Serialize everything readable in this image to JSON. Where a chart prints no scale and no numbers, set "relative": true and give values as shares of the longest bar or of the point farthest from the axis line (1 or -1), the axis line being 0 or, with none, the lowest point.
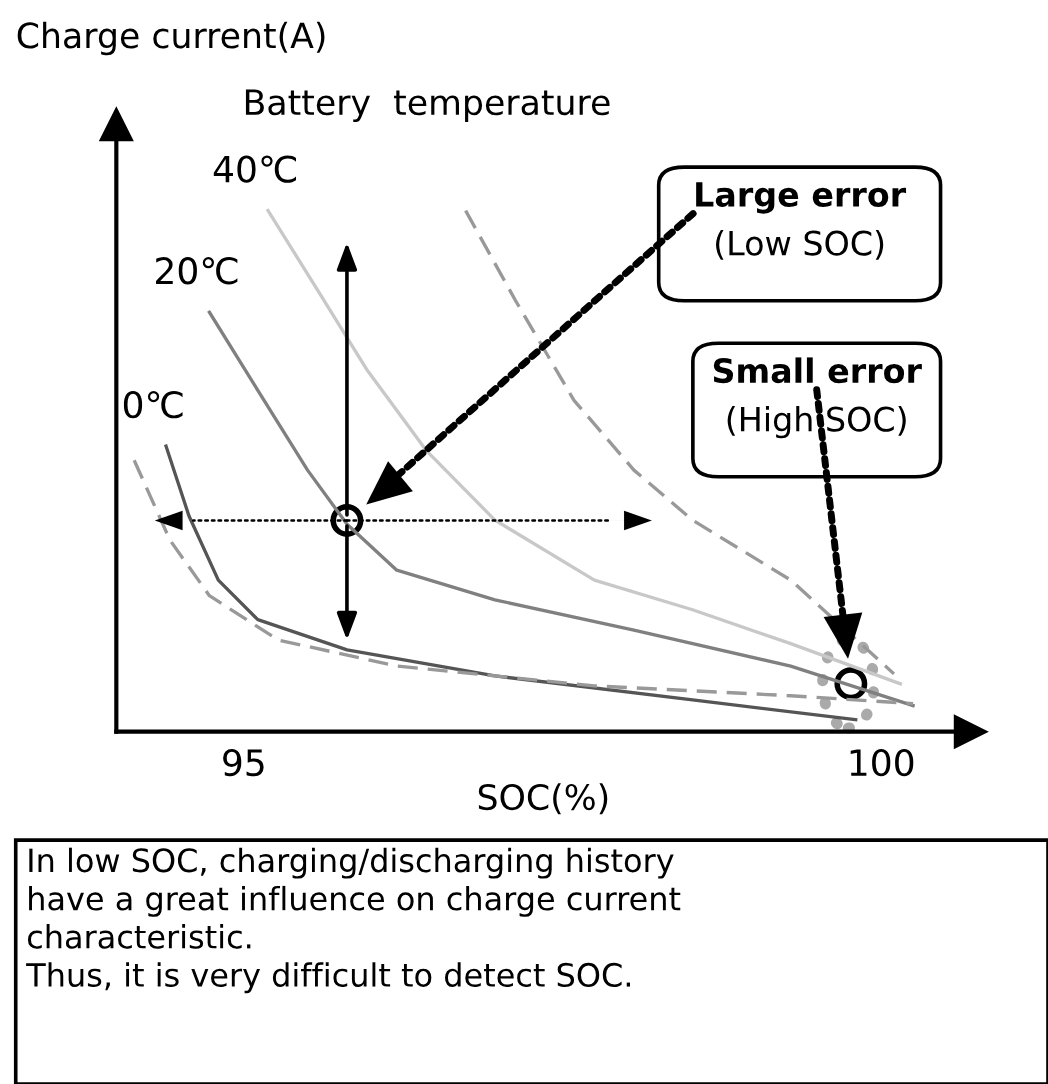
{
  "chart_data": {
    "type": "line",
    "relative": true,
    "ylabel": "Charge current(A)",
    "xlabel": "SOC(%)",
    "legend_title": "Battery  temperature",
    "xlim": [
      94.0,
      100.7
    ],
    "xticks": [
      95,
      100
    ],
    "grid": false,
    "legend": false,
    "marker": "none",
    "series": [
      {
        "name": "40℃",
        "color": "#c8c8c8",
        "line_style": "solid",
        "x": [
          95.19,
          95.58,
          95.97,
          96.43,
          96.97,
          97.75,
          98.52,
          99.29,
          100.15
        ],
        "values": [
          1.0,
          0.847,
          0.693,
          0.54,
          0.406,
          0.291,
          0.234,
          0.169,
          0.092
        ]
      },
      {
        "name": "20℃",
        "color": "#808080",
        "line_style": "solid",
        "x": [
          94.73,
          95.11,
          95.5,
          95.81,
          96.2,
          96.97,
          98.06,
          99.29,
          100.25
        ],
        "values": [
          0.805,
          0.655,
          0.502,
          0.398,
          0.31,
          0.253,
          0.195,
          0.126,
          0.05
        ]
      },
      {
        "name": "0℃",
        "color": "#555555",
        "line_style": "solid",
        "x": [
          94.39,
          94.57,
          94.8,
          95.11,
          95.81,
          96.97,
          98.52,
          99.8
        ],
        "values": [
          0.548,
          0.414,
          0.291,
          0.215,
          0.157,
          0.107,
          0.061,
          0.023
        ]
      },
      {
        "color": "#999999",
        "line_style": "dashed",
        "x": [
          96.74,
          97.13,
          97.59,
          98.06,
          98.52,
          99.29,
          100.1
        ],
        "values": [
          1.0,
          0.828,
          0.636,
          0.502,
          0.406,
          0.291,
          0.111
        ]
      },
      {
        "color": "#999999",
        "line_style": "dashed",
        "x": [
          94.14,
          94.42,
          94.73,
          95.27,
          96.2,
          97.75,
          99.29,
          100.25
        ],
        "values": [
          0.521,
          0.368,
          0.261,
          0.176,
          0.126,
          0.088,
          0.069,
          0.054
        ]
      }
    ],
    "annotations": [
      "Large error\n(Low SOC)",
      "Small error\n(High SOC)",
      "In low SOC, charging/discharging history\nhave a great influence on charge current\ncharacteristic.\nThus, it is very difficult to detect SOC."
    ]
  }
}
